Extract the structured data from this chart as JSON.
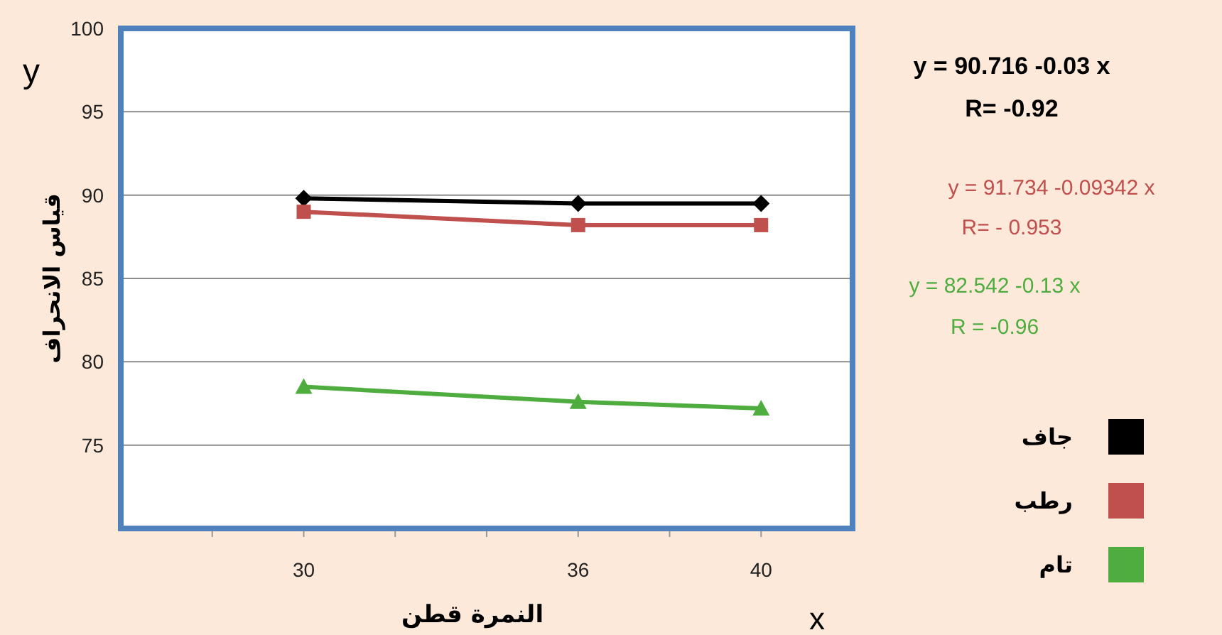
{
  "chart_data": {
    "type": "line",
    "xlabel": "النمرة قطن",
    "ylabel": "قياس الانحراف",
    "x": [
      30,
      36,
      40
    ],
    "xlim": [
      26,
      42
    ],
    "xticks": [
      {
        "value": 28,
        "label": null
      },
      30,
      {
        "value": 32,
        "label": null
      },
      {
        "value": 34,
        "label": null
      },
      36,
      {
        "value": 38,
        "label": null
      },
      40
    ],
    "ylim": [
      70,
      100
    ],
    "yticks": [
      75,
      80,
      85,
      90,
      95,
      100
    ],
    "grid": "y",
    "legend": "right",
    "series": [
      {
        "name": "جاف",
        "color": "#000000",
        "marker": "diamond",
        "values": [
          89.8,
          89.5,
          89.5
        ]
      },
      {
        "name": "رطب",
        "color": "#c0504d",
        "marker": "square",
        "values": [
          89.0,
          88.2,
          88.2
        ]
      },
      {
        "name": "تام",
        "color": "#4fad3f",
        "marker": "triangle",
        "values": [
          78.5,
          77.6,
          77.2
        ]
      }
    ],
    "annotations": [
      "y = 90.716 -0.03 x",
      "R= -0.92",
      "y = 91.734 -0.09342 x",
      "R= - 0.953",
      "y = 82.542 -0.13 x",
      "R = -0.96",
      "y",
      "x"
    ]
  }
}
